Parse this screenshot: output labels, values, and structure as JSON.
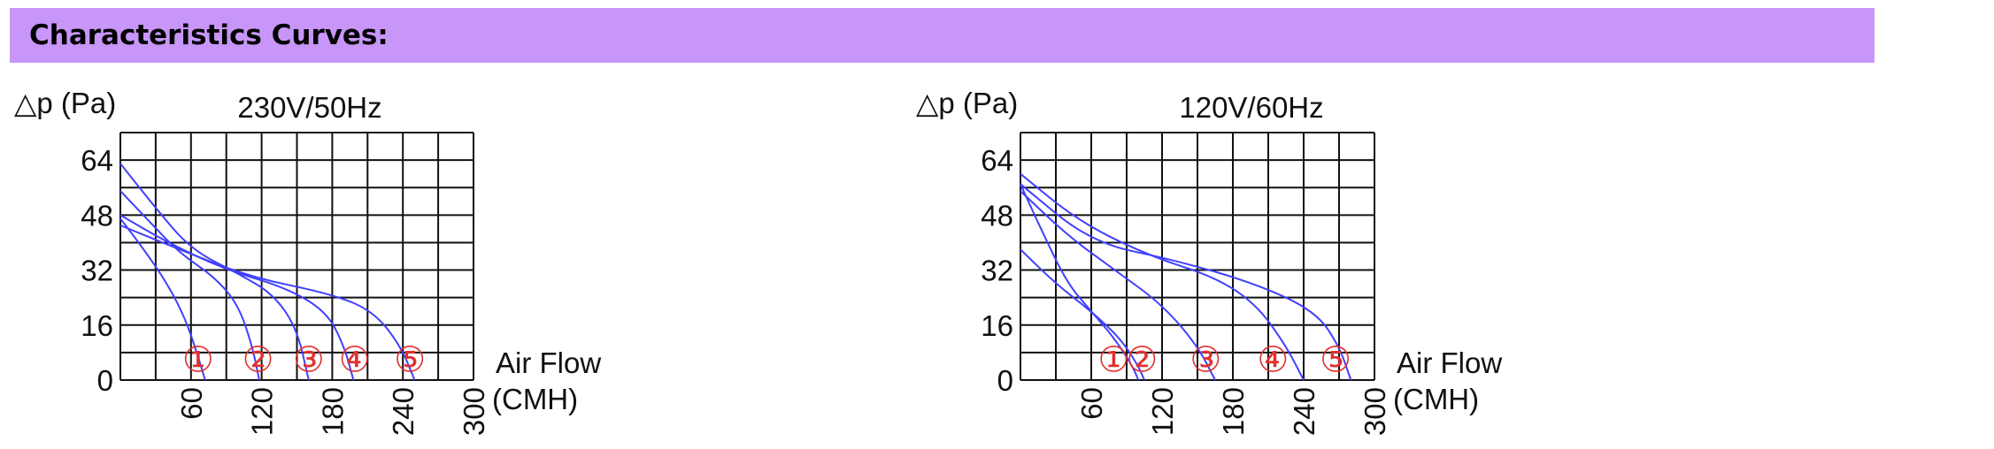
{
  "header": {
    "title": "Characteristics Curves:"
  },
  "colors": {
    "banner": "#c896f8",
    "curve": "#4040ff",
    "marker": "#e03030",
    "grid": "#111111"
  },
  "chart_data": [
    {
      "type": "line",
      "title": "230V/50Hz",
      "ylabel": "△p (Pa)",
      "xlabel_line1": "Air Flow",
      "xlabel_line2": "(CMH)",
      "xlim": [
        0,
        300
      ],
      "ylim": [
        0,
        72
      ],
      "grid": true,
      "xticks": [
        60,
        120,
        180,
        240,
        300
      ],
      "yticks": [
        0,
        16,
        32,
        48,
        64
      ],
      "series": [
        {
          "name": "①",
          "points": [
            [
              0,
              47
            ],
            [
              20,
              38
            ],
            [
              40,
              28
            ],
            [
              55,
              18
            ],
            [
              65,
              8
            ],
            [
              72,
              0
            ]
          ]
        },
        {
          "name": "②",
          "points": [
            [
              0,
              55
            ],
            [
              25,
              46
            ],
            [
              50,
              37
            ],
            [
              80,
              30
            ],
            [
              100,
              22
            ],
            [
              112,
              10
            ],
            [
              118,
              0
            ]
          ]
        },
        {
          "name": "③",
          "points": [
            [
              0,
              63
            ],
            [
              30,
              50
            ],
            [
              60,
              38
            ],
            [
              100,
              31
            ],
            [
              130,
              25
            ],
            [
              150,
              15
            ],
            [
              160,
              0
            ]
          ]
        },
        {
          "name": "④",
          "points": [
            [
              0,
              48
            ],
            [
              40,
              40
            ],
            [
              90,
              32
            ],
            [
              140,
              27
            ],
            [
              175,
              20
            ],
            [
              190,
              10
            ],
            [
              198,
              0
            ]
          ]
        },
        {
          "name": "⑤",
          "points": [
            [
              0,
              45
            ],
            [
              50,
              38
            ],
            [
              110,
              30
            ],
            [
              180,
              25
            ],
            [
              215,
              20
            ],
            [
              238,
              10
            ],
            [
              250,
              0
            ]
          ]
        }
      ],
      "markers": [
        {
          "label": "①",
          "x": 66,
          "y": 4
        },
        {
          "label": "②",
          "x": 117,
          "y": 4
        },
        {
          "label": "③",
          "x": 160,
          "y": 4
        },
        {
          "label": "④",
          "x": 199,
          "y": 4
        },
        {
          "label": "⑤",
          "x": 246,
          "y": 4
        }
      ]
    },
    {
      "type": "line",
      "title": "120V/60Hz",
      "ylabel": "△p (Pa)",
      "xlabel_line1": "Air Flow",
      "xlabel_line2": "(CMH)",
      "xlim": [
        0,
        300
      ],
      "ylim": [
        0,
        72
      ],
      "grid": true,
      "xticks": [
        60,
        120,
        180,
        240,
        300
      ],
      "yticks": [
        0,
        16,
        32,
        48,
        64
      ],
      "series": [
        {
          "name": "①",
          "points": [
            [
              0,
              57
            ],
            [
              20,
              42
            ],
            [
              40,
              28
            ],
            [
              60,
              20
            ],
            [
              80,
              12
            ],
            [
              95,
              4
            ],
            [
              100,
              0
            ]
          ]
        },
        {
          "name": "②",
          "points": [
            [
              0,
              38
            ],
            [
              30,
              28
            ],
            [
              60,
              20
            ],
            [
              85,
              12
            ],
            [
              100,
              4
            ],
            [
              105,
              0
            ]
          ]
        },
        {
          "name": "③",
          "points": [
            [
              0,
              55
            ],
            [
              40,
              42
            ],
            [
              80,
              32
            ],
            [
              120,
              22
            ],
            [
              150,
              10
            ],
            [
              165,
              0
            ]
          ]
        },
        {
          "name": "④",
          "points": [
            [
              0,
              60
            ],
            [
              50,
              46
            ],
            [
              110,
              36
            ],
            [
              165,
              30
            ],
            [
              200,
              22
            ],
            [
              225,
              10
            ],
            [
              240,
              0
            ]
          ]
        },
        {
          "name": "⑤",
          "points": [
            [
              0,
              57
            ],
            [
              60,
              40
            ],
            [
              130,
              35
            ],
            [
              200,
              28
            ],
            [
              250,
              20
            ],
            [
              270,
              10
            ],
            [
              280,
              0
            ]
          ]
        }
      ],
      "markers": [
        {
          "label": "①",
          "x": 79,
          "y": 4
        },
        {
          "label": "②",
          "x": 103,
          "y": 4
        },
        {
          "label": "③",
          "x": 157,
          "y": 4
        },
        {
          "label": "④",
          "x": 214,
          "y": 4
        },
        {
          "label": "⑤",
          "x": 267,
          "y": 4
        }
      ]
    }
  ]
}
